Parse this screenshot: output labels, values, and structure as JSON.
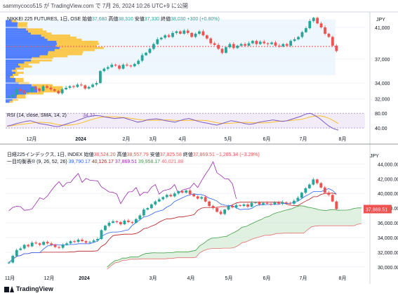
{
  "header": {
    "author_line": "sammycoco515 が TradingView.com で 7月 26, 2024 10:26 UTC+9 に公開"
  },
  "footer": {
    "brand": "TradingView"
  },
  "colors": {
    "up": "#26a69a",
    "down": "#ef5350",
    "rsi": "#7e57c2",
    "tenkan": "#2962ff",
    "kijun": "#b71c1c",
    "chikou": "#9c27b0",
    "spanA": "#43a047",
    "spanB": "#e57373",
    "price_label_bg": "#ef5350"
  },
  "chart_data": [
    {
      "type": "candlestick",
      "panel": "top",
      "legend": {
        "symbol": "NIKKEI 225 FUTURES, 1日, OSE",
        "open_label": "始値",
        "open": "37,680",
        "high_label": "高値",
        "high": "38,310",
        "low_label": "安値",
        "low": "37,330",
        "close_label": "終値",
        "close": "38,030",
        "change": "+300 (+0.80%)"
      },
      "currency": "JPY",
      "y_ticks": [
        {
          "label": "41,000",
          "value": 41000
        },
        {
          "label": "37,000",
          "value": 37000
        },
        {
          "label": "34,000",
          "value": 34000
        },
        {
          "label": "32,000",
          "value": 32000
        }
      ],
      "ylim": [
        31000,
        42500
      ],
      "x_ticks": [
        "12月",
        "2024",
        "2月",
        "3月",
        "4月",
        "5月",
        "6月",
        "7月",
        "8月"
      ],
      "close_series": [
        32300,
        32500,
        33200,
        33000,
        32800,
        32900,
        33400,
        33300,
        33000,
        33600,
        33400,
        33200,
        33000,
        32700,
        33200,
        33400,
        33600,
        33500,
        33800,
        33700,
        33300,
        33500,
        33800,
        34000,
        35500,
        35800,
        36000,
        36300,
        36200,
        35800,
        36300,
        36200,
        36100,
        36400,
        36800,
        37500,
        37800,
        38300,
        38900,
        39500,
        39700,
        40000,
        39800,
        40300,
        40500,
        40200,
        40600,
        40300,
        39800,
        40200,
        40500,
        40000,
        39600,
        39000,
        38800,
        38300,
        37800,
        38500,
        38900,
        38400,
        38700,
        38900,
        38700,
        39000,
        39300,
        38900,
        39200,
        39000,
        38900,
        39100,
        38700,
        38600,
        38900,
        38700,
        39300,
        39500,
        39800,
        40400,
        40900,
        41800,
        42200,
        41500,
        41000,
        40200,
        39800,
        38700,
        38030
      ],
      "dashed_line": 38600,
      "volume_profile_note": "volume by price histogram on left",
      "rsi": {
        "label": "RSI (14, close, SMA, 14, 2)",
        "value": "34.37",
        "ticks": [
          {
            "label": "80.00",
            "value": 80
          },
          {
            "label": "40.00",
            "value": 40
          }
        ],
        "ylim": [
          25,
          90
        ],
        "series": [
          45,
          48,
          52,
          55,
          58,
          60,
          56,
          52,
          50,
          48,
          45,
          44,
          48,
          52,
          56,
          60,
          65,
          70,
          72,
          74,
          73,
          70,
          68,
          66,
          67,
          68,
          64,
          60,
          56,
          58,
          62,
          64,
          65,
          63,
          60,
          58,
          56,
          60,
          64,
          66,
          62,
          58,
          55,
          53,
          50,
          48,
          52,
          56,
          60,
          58,
          55,
          52,
          50,
          52,
          56,
          58,
          60,
          62,
          60,
          58,
          60,
          64,
          68,
          72,
          78,
          80,
          74,
          66,
          55,
          45,
          38,
          34.37
        ]
      }
    },
    {
      "type": "candlestick",
      "panel": "bottom",
      "legend": {
        "symbol": "日経225インデックス, 1日, INDEX",
        "open_label": "始値",
        "open": "38,524.20",
        "high_label": "高値",
        "high": "38,557.79",
        "low_label": "安値",
        "low": "37,825.58",
        "close_label": "終値",
        "close": "37,869.51",
        "change": "−1,285.34 (−3.28%)"
      },
      "ichimoku": {
        "label": "一目均衡表® (9, 26, 52, 26)",
        "values": [
          "39,790.17",
          "40,126.17",
          "37,869.51",
          "39,958.17",
          "40,021.88"
        ]
      },
      "currency": "JPY",
      "price_label": "37,869.51",
      "y_ticks": [
        {
          "label": "44,000.00",
          "value": 44000
        },
        {
          "label": "42,000.00",
          "value": 42000
        },
        {
          "label": "40,000.00",
          "value": 40000
        },
        {
          "label": "38,000.00",
          "value": 38000
        },
        {
          "label": "36,000.00",
          "value": 36000
        },
        {
          "label": "34,000.00",
          "value": 34000
        },
        {
          "label": "32,000.00",
          "value": 32000
        },
        {
          "label": "30,000.00",
          "value": 30000
        }
      ],
      "ylim": [
        29500,
        44800
      ],
      "x_ticks": [
        "11月",
        "12月",
        "2024",
        "3月",
        "4月",
        "5月",
        "6月",
        "7月",
        "8月"
      ],
      "close_series": [
        30600,
        31500,
        32300,
        32500,
        33000,
        32800,
        33300,
        33200,
        33000,
        33400,
        33200,
        33000,
        32700,
        32600,
        33000,
        33200,
        33500,
        33400,
        33700,
        33500,
        33300,
        33400,
        33600,
        33800,
        35000,
        35600,
        36000,
        36200,
        36100,
        35800,
        36300,
        36100,
        36000,
        36500,
        37000,
        37800,
        38000,
        38500,
        38900,
        39200,
        39500,
        39800,
        39600,
        40000,
        40300,
        40100,
        40400,
        39900,
        39600,
        39300,
        39500,
        38900,
        38300,
        38000,
        37500,
        37200,
        37800,
        38300,
        38100,
        38400,
        38300,
        38500,
        38200,
        38700,
        38800,
        38500,
        38700,
        38600,
        38500,
        38800,
        38600,
        38800,
        38700,
        38600,
        39000,
        39400,
        40100,
        40700,
        41200,
        41900,
        41400,
        40800,
        40100,
        39800,
        38900,
        37869.51
      ]
    }
  ]
}
